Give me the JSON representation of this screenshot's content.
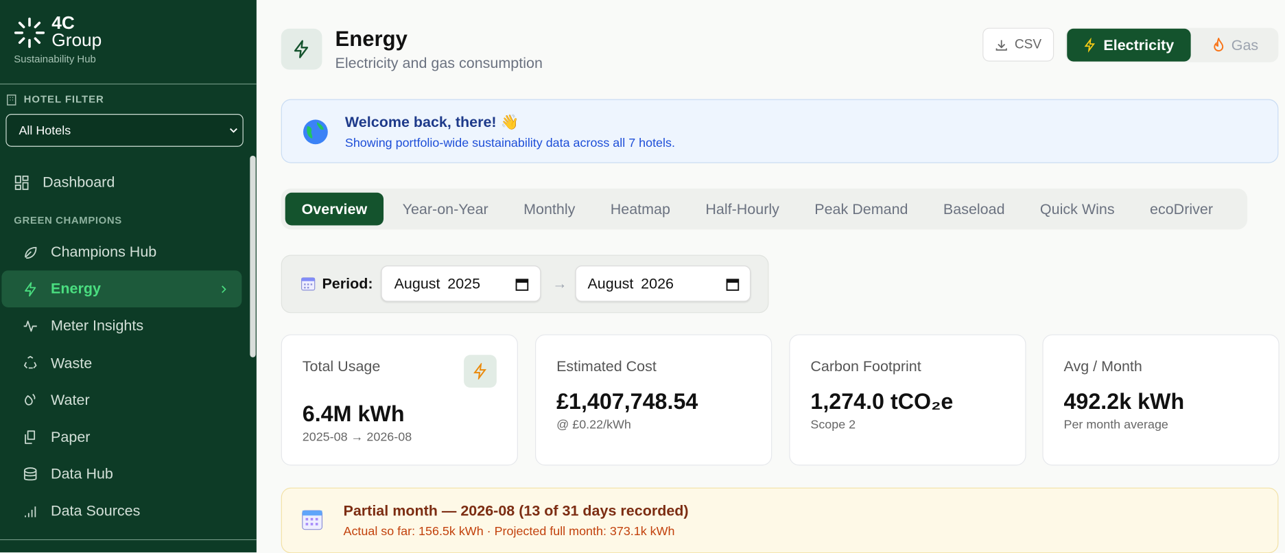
{
  "sidebar": {
    "logo": {
      "line1": "4C",
      "line2": "Group",
      "tagline": "Sustainability Hub"
    },
    "hotel_filter": {
      "label": "HOTEL FILTER",
      "value": "All Hotels"
    },
    "nav_top": [
      "Dashboard"
    ],
    "section": "GREEN CHAMPIONS",
    "section_items": [
      "Champions Hub",
      "Energy",
      "Meter Insights",
      "Waste",
      "Water",
      "Paper",
      "Data Hub",
      "Data Sources"
    ],
    "active": "Energy"
  },
  "header": {
    "title": "Energy",
    "subtitle": "Electricity and gas consumption",
    "csv": "CSV",
    "toggle": [
      "Electricity",
      "Gas"
    ]
  },
  "banner": {
    "title": "Welcome back, there! 👋",
    "text": "Showing portfolio-wide sustainability data across all 7 hotels."
  },
  "tabs": [
    "Overview",
    "Year-on-Year",
    "Monthly",
    "Heatmap",
    "Half-Hourly",
    "Peak Demand",
    "Baseload",
    "Quick Wins",
    "ecoDriver"
  ],
  "period": {
    "label": "Period:",
    "from": "August 2025",
    "arrow": "→",
    "to": "August 2026"
  },
  "cards": [
    {
      "label": "Total Usage",
      "value": "6.4M kWh",
      "sub": "2025-08 → 2026-08"
    },
    {
      "label": "Estimated Cost",
      "value": "£1,407,748.54",
      "sub": "@ £0.22/kWh"
    },
    {
      "label": "Carbon Footprint",
      "value": "1,274.0 tCO₂e",
      "sub": "Scope 2"
    },
    {
      "label": "Avg / Month",
      "value": "492.2k kWh",
      "sub": "Per month average"
    }
  ],
  "notice": {
    "title": "Partial month — 2026-08 (13 of 31 days recorded)",
    "text": "Actual so far: 156.5k kWh · Projected full month: 373.1k kWh"
  }
}
